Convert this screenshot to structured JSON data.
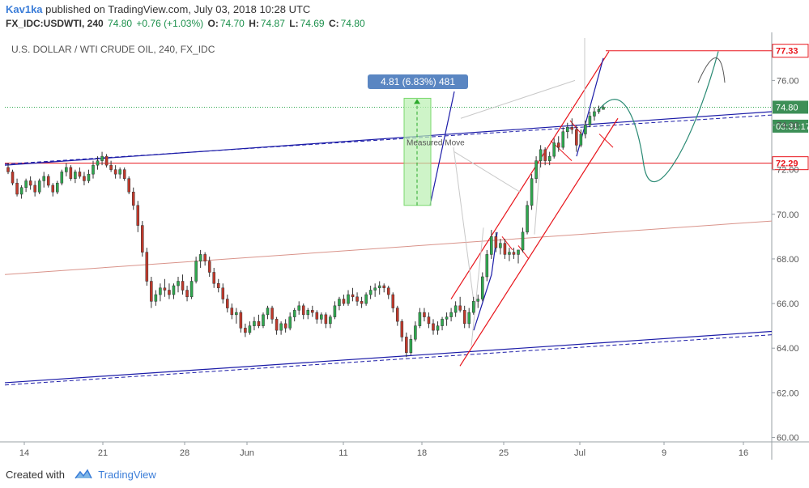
{
  "header": {
    "author": "Kav1ka",
    "published": "published on TradingView.com, July 03, 2018 10:28 UTC",
    "symbol": "FX_IDC:USDWTI, 240",
    "last": "74.80",
    "change": "+0.76 (+1.03%)",
    "o_label": "O:",
    "o_value": "74.70",
    "h_label": "H:",
    "h_value": "74.87",
    "l_label": "L:",
    "l_value": "74.69",
    "c_label": "C:",
    "c_value": "74.80"
  },
  "footer": {
    "created_with": "Created with",
    "brand": "TradingView"
  },
  "colors": {
    "up": "#2fa84f",
    "down": "#c0392b",
    "channel": "#e8141b",
    "trend": "#1c1ca8",
    "level": "#e8141b",
    "projection": "#2a8a74"
  },
  "chart_data": {
    "type": "candlestick",
    "title": "U.S. DOLLAR / WTI CRUDE OIL, 240, FX_IDC",
    "x_ticks": [
      "14",
      "21",
      "28",
      "Jun",
      "11",
      "18",
      "25",
      "Jul",
      "9",
      "16"
    ],
    "y_ticks": [
      "60.00",
      "62.00",
      "64.00",
      "66.00",
      "68.00",
      "70.00",
      "72.00",
      "74.00",
      "76.00"
    ],
    "ylim": [
      59.8,
      77.9
    ],
    "price_labels": [
      {
        "text": "77.33",
        "value": 77.33,
        "kind": "level"
      },
      {
        "text": "74.80",
        "value": 74.8,
        "kind": "last"
      },
      {
        "text": "03:31:17",
        "value": 73.95,
        "kind": "timer"
      },
      {
        "text": "72.29",
        "value": 72.29,
        "kind": "level"
      }
    ],
    "measure": {
      "label": "4.81 (6.83%) 481",
      "from": 70.4,
      "to": 75.2
    },
    "annotation": "Measured Move",
    "candles": [
      [
        72.1,
        72.3,
        71.8,
        71.9
      ],
      [
        71.9,
        72.0,
        71.3,
        71.4
      ],
      [
        71.4,
        71.6,
        70.8,
        70.9
      ],
      [
        70.9,
        71.3,
        70.7,
        71.2
      ],
      [
        71.2,
        71.6,
        71.0,
        71.5
      ],
      [
        71.5,
        71.7,
        71.1,
        71.3
      ],
      [
        71.3,
        71.5,
        70.8,
        71.0
      ],
      [
        71.0,
        71.6,
        70.9,
        71.5
      ],
      [
        71.5,
        71.9,
        71.2,
        71.7
      ],
      [
        71.7,
        71.8,
        71.2,
        71.3
      ],
      [
        71.3,
        71.4,
        70.8,
        71.0
      ],
      [
        71.0,
        71.5,
        70.9,
        71.4
      ],
      [
        71.4,
        72.0,
        71.3,
        71.9
      ],
      [
        71.9,
        72.3,
        71.7,
        72.1
      ],
      [
        72.1,
        72.2,
        71.5,
        71.6
      ],
      [
        71.6,
        72.0,
        71.4,
        71.9
      ],
      [
        71.9,
        72.1,
        71.6,
        71.7
      ],
      [
        71.7,
        71.9,
        71.3,
        71.5
      ],
      [
        71.5,
        72.0,
        71.4,
        71.8
      ],
      [
        71.8,
        72.4,
        71.6,
        72.2
      ],
      [
        72.2,
        72.6,
        72.0,
        72.4
      ],
      [
        72.4,
        72.8,
        72.2,
        72.6
      ],
      [
        72.6,
        72.7,
        72.1,
        72.2
      ],
      [
        72.2,
        72.4,
        71.9,
        72.0
      ],
      [
        72.0,
        72.2,
        71.6,
        71.8
      ],
      [
        71.8,
        72.1,
        71.6,
        72.0
      ],
      [
        72.0,
        72.1,
        71.5,
        71.6
      ],
      [
        71.6,
        71.7,
        70.9,
        71.0
      ],
      [
        71.0,
        71.2,
        70.2,
        70.4
      ],
      [
        70.4,
        70.6,
        69.2,
        69.5
      ],
      [
        69.5,
        69.7,
        68.1,
        68.3
      ],
      [
        68.3,
        68.5,
        66.8,
        67.0
      ],
      [
        67.0,
        67.2,
        65.8,
        66.1
      ],
      [
        66.1,
        66.6,
        65.9,
        66.4
      ],
      [
        66.4,
        66.9,
        66.1,
        66.7
      ],
      [
        66.7,
        67.1,
        66.3,
        66.6
      ],
      [
        66.6,
        66.9,
        66.2,
        66.4
      ],
      [
        66.4,
        66.9,
        66.2,
        66.8
      ],
      [
        66.8,
        67.2,
        66.5,
        67.0
      ],
      [
        67.0,
        67.3,
        66.4,
        66.6
      ],
      [
        66.6,
        66.8,
        66.1,
        66.3
      ],
      [
        66.3,
        67.2,
        66.2,
        67.0
      ],
      [
        67.0,
        68.1,
        66.9,
        67.9
      ],
      [
        67.9,
        68.4,
        67.6,
        68.2
      ],
      [
        68.2,
        68.3,
        67.7,
        67.9
      ],
      [
        67.9,
        68.1,
        67.2,
        67.4
      ],
      [
        67.4,
        67.6,
        66.7,
        66.9
      ],
      [
        66.9,
        67.1,
        66.5,
        66.7
      ],
      [
        66.7,
        66.9,
        66.0,
        66.2
      ],
      [
        66.2,
        66.4,
        65.6,
        65.8
      ],
      [
        65.8,
        66.0,
        65.3,
        65.5
      ],
      [
        65.5,
        65.8,
        65.1,
        65.6
      ],
      [
        65.6,
        65.7,
        64.7,
        64.9
      ],
      [
        64.9,
        65.1,
        64.5,
        64.7
      ],
      [
        64.7,
        65.2,
        64.6,
        65.0
      ],
      [
        65.0,
        65.4,
        64.8,
        65.2
      ],
      [
        65.2,
        65.5,
        64.9,
        65.0
      ],
      [
        65.0,
        65.6,
        64.9,
        65.5
      ],
      [
        65.5,
        65.9,
        65.3,
        65.8
      ],
      [
        65.8,
        65.9,
        65.1,
        65.3
      ],
      [
        65.3,
        65.4,
        64.6,
        64.8
      ],
      [
        64.8,
        65.2,
        64.6,
        65.1
      ],
      [
        65.1,
        65.3,
        64.7,
        64.9
      ],
      [
        64.9,
        65.6,
        64.8,
        65.4
      ],
      [
        65.4,
        65.8,
        65.2,
        65.7
      ],
      [
        65.7,
        66.1,
        65.5,
        65.9
      ],
      [
        65.9,
        66.0,
        65.3,
        65.5
      ],
      [
        65.5,
        65.8,
        65.3,
        65.7
      ],
      [
        65.7,
        65.9,
        65.4,
        65.6
      ],
      [
        65.6,
        65.7,
        65.1,
        65.3
      ],
      [
        65.3,
        65.6,
        65.1,
        65.5
      ],
      [
        65.5,
        65.6,
        64.9,
        65.1
      ],
      [
        65.1,
        65.5,
        64.9,
        65.4
      ],
      [
        65.4,
        66.1,
        65.3,
        65.9
      ],
      [
        65.9,
        66.3,
        65.7,
        66.2
      ],
      [
        66.2,
        66.4,
        65.9,
        66.0
      ],
      [
        66.0,
        66.6,
        65.9,
        66.4
      ],
      [
        66.4,
        66.7,
        66.1,
        66.3
      ],
      [
        66.3,
        66.5,
        65.9,
        66.1
      ],
      [
        66.1,
        66.3,
        65.8,
        66.0
      ],
      [
        66.0,
        66.5,
        65.9,
        66.4
      ],
      [
        66.4,
        66.8,
        66.2,
        66.6
      ],
      [
        66.6,
        66.9,
        66.3,
        66.7
      ],
      [
        66.7,
        67.0,
        66.4,
        66.8
      ],
      [
        66.8,
        66.9,
        66.5,
        66.7
      ],
      [
        66.7,
        66.8,
        66.2,
        66.4
      ],
      [
        66.4,
        66.5,
        65.6,
        65.8
      ],
      [
        65.8,
        65.9,
        65.0,
        65.2
      ],
      [
        65.2,
        65.3,
        64.3,
        64.5
      ],
      [
        64.5,
        64.7,
        63.6,
        63.8
      ],
      [
        63.8,
        64.6,
        63.7,
        64.4
      ],
      [
        64.4,
        65.2,
        64.3,
        65.0
      ],
      [
        65.0,
        65.8,
        64.9,
        65.6
      ],
      [
        65.6,
        65.8,
        65.2,
        65.4
      ],
      [
        65.4,
        65.6,
        64.9,
        65.1
      ],
      [
        65.1,
        65.3,
        64.6,
        64.8
      ],
      [
        64.8,
        65.2,
        64.6,
        65.0
      ],
      [
        65.0,
        65.4,
        64.8,
        65.3
      ],
      [
        65.3,
        65.6,
        65.0,
        65.4
      ],
      [
        65.4,
        65.8,
        65.2,
        65.6
      ],
      [
        65.6,
        66.1,
        65.4,
        65.9
      ],
      [
        65.9,
        66.3,
        65.6,
        65.7
      ],
      [
        65.7,
        65.9,
        64.9,
        65.1
      ],
      [
        65.1,
        65.8,
        64.9,
        65.6
      ],
      [
        65.6,
        66.3,
        65.5,
        66.1
      ],
      [
        66.1,
        66.4,
        65.8,
        66.2
      ],
      [
        66.2,
        67.4,
        66.1,
        67.2
      ],
      [
        67.2,
        68.4,
        67.0,
        68.2
      ],
      [
        68.2,
        69.3,
        68.0,
        69.0
      ],
      [
        69.0,
        69.2,
        68.3,
        68.5
      ],
      [
        68.5,
        68.9,
        68.2,
        68.7
      ],
      [
        68.7,
        68.9,
        68.0,
        68.2
      ],
      [
        68.2,
        68.5,
        67.9,
        68.3
      ],
      [
        68.3,
        68.5,
        68.0,
        68.2
      ],
      [
        68.2,
        68.4,
        67.8,
        68.4
      ],
      [
        68.4,
        69.4,
        68.3,
        69.2
      ],
      [
        69.2,
        70.6,
        69.1,
        70.4
      ],
      [
        70.4,
        71.8,
        70.2,
        71.6
      ],
      [
        71.6,
        72.6,
        71.4,
        72.4
      ],
      [
        72.4,
        73.1,
        72.1,
        72.9
      ],
      [
        72.9,
        73.0,
        72.2,
        72.4
      ],
      [
        72.4,
        72.8,
        72.2,
        72.6
      ],
      [
        72.6,
        73.4,
        72.5,
        73.2
      ],
      [
        73.2,
        73.5,
        72.8,
        73.0
      ],
      [
        73.0,
        73.9,
        72.9,
        73.7
      ],
      [
        73.7,
        74.1,
        73.4,
        73.9
      ],
      [
        73.9,
        74.3,
        73.6,
        73.8
      ],
      [
        73.8,
        74.0,
        72.8,
        73.1
      ],
      [
        73.1,
        73.8,
        73.0,
        73.6
      ],
      [
        73.6,
        74.2,
        73.4,
        74.0
      ],
      [
        74.0,
        74.6,
        73.9,
        74.4
      ],
      [
        74.4,
        74.8,
        74.2,
        74.6
      ],
      [
        74.6,
        74.87,
        74.5,
        74.7
      ],
      [
        74.7,
        74.87,
        74.69,
        74.8
      ]
    ]
  }
}
